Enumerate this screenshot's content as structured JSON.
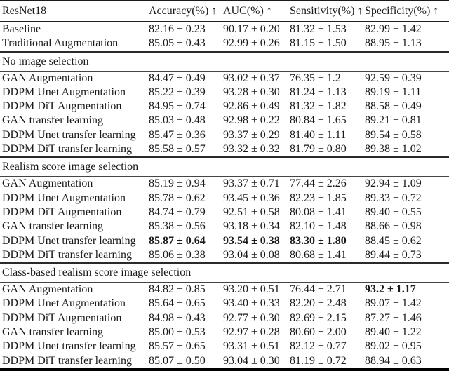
{
  "page": {
    "background": "#ffffff",
    "text_color": "#1a1a1a",
    "rule_color": "#000000"
  },
  "table": {
    "model_header": "ResNet18",
    "metric_headers": [
      "Accuracy(%) ↑",
      "AUC(%) ↑",
      "Sensitivity(%) ↑",
      "Specificity(%) ↑"
    ],
    "sections": [
      {
        "title": null,
        "rows": [
          {
            "method": "Baseline",
            "values": [
              "82.16 ± 0.23",
              "90.17 ± 0.20",
              "81.32 ± 1.53",
              "82.99 ± 1.42"
            ],
            "bold": []
          },
          {
            "method": "Traditional Augmentation",
            "values": [
              "85.05 ± 0.43",
              "92.99 ± 0.26",
              "81.15 ± 1.50",
              "88.95 ± 1.13"
            ],
            "bold": []
          }
        ]
      },
      {
        "title": "No image selection",
        "rows": [
          {
            "method": "GAN Augmentation",
            "values": [
              "84.47 ± 0.49",
              "93.02 ± 0.37",
              "76.35 ± 1.2",
              "92.59 ± 0.39"
            ],
            "bold": []
          },
          {
            "method": "DDPM Unet Augmentation",
            "values": [
              "85.22 ± 0.39",
              "93.28 ± 0.30",
              "81.24 ± 1.13",
              "89.19 ± 1.11"
            ],
            "bold": []
          },
          {
            "method": "DDPM DiT Augmentation",
            "values": [
              "84.95 ± 0.74",
              "92.86 ± 0.49",
              "81.32 ± 1.82",
              "88.58 ± 0.49"
            ],
            "bold": []
          },
          {
            "method": "GAN transfer learning",
            "values": [
              "85.03 ± 0.48",
              "92.98 ± 0.22",
              "80.84 ± 1.65",
              "89.21 ± 0.81"
            ],
            "bold": []
          },
          {
            "method": "DDPM Unet transfer learning",
            "values": [
              "85.47 ± 0.36",
              "93.37 ± 0.29",
              "81.40 ± 1.11",
              "89.54 ± 0.58"
            ],
            "bold": []
          },
          {
            "method": "DDPM DiT transfer learning",
            "values": [
              "85.58 ± 0.57",
              "93.32 ± 0.32",
              "81.79 ± 0.80",
              "89.38 ± 1.02"
            ],
            "bold": []
          }
        ]
      },
      {
        "title": "Realism score image selection",
        "rows": [
          {
            "method": "GAN Augmentation",
            "values": [
              "85.19 ± 0.94",
              "93.37 ± 0.71",
              "77.44 ± 2.26",
              "92.94 ± 1.09"
            ],
            "bold": []
          },
          {
            "method": "DDPM Unet Augmentation",
            "values": [
              "85.78 ± 0.62",
              "93.45 ± 0.36",
              "82.23 ± 1.85",
              "89.33 ± 0.72"
            ],
            "bold": []
          },
          {
            "method": "DDPM DiT Augmentation",
            "values": [
              "84.74 ± 0.79",
              "92.51 ± 0.58",
              "80.08 ± 1.41",
              "89.40 ± 0.55"
            ],
            "bold": []
          },
          {
            "method": "GAN transfer learning",
            "values": [
              "85.38 ± 0.56",
              "93.18 ± 0.34",
              "82.10 ± 1.48",
              "88.66 ± 0.98"
            ],
            "bold": []
          },
          {
            "method": "DDPM Unet transfer learning",
            "values": [
              "85.87 ± 0.64",
              "93.54 ± 0.38",
              "83.30 ± 1.80",
              "88.45 ± 0.62"
            ],
            "bold": [
              0,
              1,
              2
            ]
          },
          {
            "method": "DDPM DiT transfer learning",
            "values": [
              "85.06 ± 0.38",
              "93.04 ± 0.08",
              "80.68 ± 1.41",
              "89.44 ± 0.73"
            ],
            "bold": []
          }
        ]
      },
      {
        "title": "Class-based realism score image selection",
        "rows": [
          {
            "method": "GAN Augmentation",
            "values": [
              "84.82 ± 0.85",
              "93.20 ± 0.51",
              "76.44 ± 2.71",
              "93.2 ± 1.17"
            ],
            "bold": [
              3
            ]
          },
          {
            "method": "DDPM Unet Augmentation",
            "values": [
              "85.64 ± 0.65",
              "93.40 ± 0.33",
              "82.20 ± 2.48",
              "89.07 ± 1.42"
            ],
            "bold": []
          },
          {
            "method": "DDPM DiT Augmentation",
            "values": [
              "84.98 ± 0.43",
              "92.77 ± 0.30",
              "82.69 ± 2.15",
              "87.27 ± 1.46"
            ],
            "bold": []
          },
          {
            "method": "GAN transfer learning",
            "values": [
              "85.00 ± 0.53",
              "92.97 ± 0.28",
              "80.60 ± 2.00",
              "89.40 ± 1.22"
            ],
            "bold": []
          },
          {
            "method": "DDPM Unet transfer learning",
            "values": [
              "85.57 ± 0.65",
              "93.31 ± 0.51",
              "82.12 ± 0.77",
              "89.02 ± 0.95"
            ],
            "bold": []
          },
          {
            "method": "DDPM DiT transfer learning",
            "values": [
              "85.07 ± 0.50",
              "93.04 ± 0.30",
              "81.19 ± 0.72",
              "88.94 ± 0.63"
            ],
            "bold": []
          }
        ]
      }
    ]
  }
}
